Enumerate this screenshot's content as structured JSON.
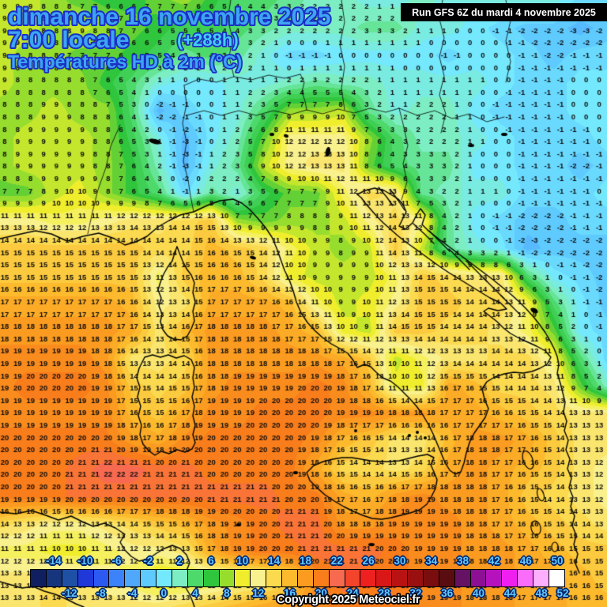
{
  "header": {
    "date_line": "dimanche 16 novembre 2025",
    "time_line": "7:00 locale",
    "forecast_offset": "(+288h)",
    "variable_line": "Températures HD à 2m (°C)",
    "text_fill": "#3da4f2",
    "text_outline": "#1b2fc4",
    "offset_fill": "#42ccf2"
  },
  "run_box": {
    "label": "Run GFS 6Z du mardi 4 novembre 2025",
    "bg": "#000000",
    "fg": "#ffffff"
  },
  "copyright": {
    "label": "Copyright 2025 Meteociel.fr",
    "fill": "#ffffff",
    "outline": "#000000"
  },
  "scale": {
    "unit": "°C",
    "min": -16,
    "max": 52,
    "step_per_cell": 2,
    "ticks_top": [
      -14,
      -10,
      -6,
      -2,
      2,
      6,
      10,
      14,
      18,
      22,
      26,
      30,
      34,
      38,
      42,
      46,
      50
    ],
    "ticks_bottom": [
      -12,
      -8,
      -4,
      0,
      4,
      8,
      12,
      16,
      20,
      24,
      28,
      32,
      36,
      40,
      44,
      48,
      52
    ],
    "label_color": "#61c8ff",
    "label_outline": "#04266e",
    "colors": [
      "#101f5f",
      "#16357c",
      "#1e50a6",
      "#2038d8",
      "#2c59f2",
      "#3c82fa",
      "#50a8fd",
      "#5ecafe",
      "#74e8fd",
      "#7deec3",
      "#4ed96b",
      "#2fc53c",
      "#97dd2e",
      "#f0ee2c",
      "#f9f18e",
      "#fbda50",
      "#fcba2c",
      "#fb9b20",
      "#f97d1b",
      "#f86a50",
      "#f4442b",
      "#ee2020",
      "#d91717",
      "#b91212",
      "#9a0f0f",
      "#7a0e0e",
      "#5a0d10",
      "#651164",
      "#8c0f94",
      "#b511bd",
      "#ef1fef",
      "#fb6cfb",
      "#fdaefc",
      "#ffffff"
    ]
  },
  "map": {
    "number_color": "#0d0d0d",
    "coast_color": "#000000"
  },
  "chart_data": {
    "type": "heatmap",
    "title": "Températures HD à 2m (°C)",
    "valid": "dimanche 16 novembre 2025 7:00 locale (+288h)",
    "run": "Run GFS 6Z du mardi 4 novembre 2025",
    "unit": "°C",
    "grid_cols": 24,
    "grid_rows": 23,
    "values": [
      [
        9,
        9,
        8,
        7,
        6,
        6,
        7,
        8,
        6,
        4,
        4,
        3,
        2,
        2,
        1,
        1,
        2,
        1,
        1,
        1,
        1,
        1,
        -1,
        -1
      ],
      [
        9,
        9,
        8,
        9,
        8,
        7,
        6,
        5,
        5,
        4,
        3,
        2,
        2,
        2,
        3,
        3,
        1,
        1,
        0,
        -1,
        -2,
        -2,
        -3,
        -2
      ],
      [
        9,
        8,
        8,
        7,
        7,
        6,
        5,
        3,
        4,
        3,
        1,
        -1,
        -1,
        0,
        0,
        0,
        0,
        -1,
        0,
        0,
        -1,
        -2,
        -1,
        -1
      ],
      [
        9,
        8,
        8,
        8,
        6,
        4,
        1,
        0,
        0,
        1,
        1,
        2,
        3,
        2,
        2,
        1,
        1,
        1,
        1,
        0,
        -1,
        -1,
        0,
        0
      ],
      [
        8,
        8,
        9,
        8,
        8,
        4,
        -3,
        -1,
        0,
        1,
        4,
        8,
        8,
        9,
        3,
        1,
        2,
        2,
        0,
        -1,
        -1,
        -1,
        0,
        0
      ],
      [
        8,
        9,
        9,
        9,
        8,
        5,
        1,
        -3,
        0,
        2,
        7,
        12,
        12,
        12,
        8,
        4,
        2,
        2,
        1,
        0,
        -1,
        -1,
        -1,
        0
      ],
      [
        8,
        9,
        9,
        9,
        8,
        6,
        2,
        -3,
        1,
        3,
        9,
        12,
        13,
        13,
        7,
        4,
        3,
        3,
        0,
        0,
        -1,
        -1,
        -2,
        -1
      ],
      [
        7,
        7,
        9,
        10,
        8,
        6,
        4,
        -1,
        3,
        1,
        5,
        7,
        7,
        11,
        14,
        13,
        3,
        2,
        1,
        1,
        -1,
        -1,
        -1,
        0
      ],
      [
        12,
        12,
        11,
        11,
        12,
        13,
        13,
        14,
        15,
        8,
        7,
        8,
        8,
        9,
        12,
        14,
        12,
        3,
        0,
        -1,
        -2,
        -2,
        -1,
        -1
      ],
      [
        15,
        15,
        15,
        15,
        15,
        15,
        14,
        14,
        16,
        15,
        14,
        11,
        9,
        8,
        9,
        15,
        9,
        3,
        1,
        0,
        -3,
        -2,
        -2,
        -2
      ],
      [
        15,
        15,
        15,
        15,
        15,
        15,
        11,
        15,
        16,
        16,
        14,
        10,
        9,
        9,
        9,
        11,
        15,
        14,
        13,
        13,
        4,
        0,
        -1,
        -2
      ],
      [
        17,
        17,
        17,
        17,
        17,
        16,
        12,
        13,
        17,
        17,
        17,
        16,
        11,
        9,
        10,
        12,
        15,
        15,
        14,
        14,
        11,
        4,
        0,
        -2
      ],
      [
        18,
        18,
        18,
        18,
        18,
        17,
        13,
        16,
        18,
        18,
        18,
        17,
        16,
        10,
        9,
        15,
        15,
        14,
        14,
        13,
        11,
        7,
        0,
        -1
      ],
      [
        19,
        19,
        19,
        19,
        18,
        13,
        13,
        14,
        18,
        18,
        18,
        18,
        18,
        17,
        15,
        9,
        11,
        13,
        13,
        14,
        14,
        11,
        4,
        -1
      ],
      [
        19,
        20,
        20,
        20,
        19,
        15,
        14,
        15,
        18,
        19,
        19,
        19,
        20,
        19,
        16,
        10,
        10,
        17,
        16,
        14,
        14,
        13,
        7,
        2
      ],
      [
        19,
        19,
        19,
        19,
        19,
        16,
        15,
        17,
        19,
        19,
        20,
        20,
        20,
        19,
        19,
        18,
        18,
        17,
        17,
        16,
        15,
        14,
        13,
        13
      ],
      [
        20,
        20,
        20,
        20,
        20,
        18,
        17,
        19,
        20,
        20,
        20,
        20,
        19,
        16,
        15,
        13,
        13,
        16,
        18,
        18,
        17,
        15,
        13,
        13
      ],
      [
        20,
        20,
        20,
        21,
        22,
        22,
        21,
        21,
        20,
        20,
        20,
        20,
        17,
        14,
        14,
        13,
        14,
        17,
        18,
        17,
        16,
        15,
        13,
        12
      ],
      [
        20,
        20,
        20,
        21,
        21,
        21,
        21,
        21,
        21,
        21,
        21,
        20,
        20,
        17,
        16,
        18,
        19,
        18,
        18,
        17,
        15,
        14,
        13,
        12
      ],
      [
        14,
        13,
        12,
        12,
        13,
        14,
        15,
        16,
        18,
        19,
        20,
        21,
        21,
        18,
        18,
        19,
        19,
        19,
        18,
        17,
        16,
        15,
        14,
        13
      ],
      [
        11,
        11,
        10,
        10,
        11,
        12,
        12,
        13,
        17,
        19,
        20,
        20,
        21,
        21,
        21,
        20,
        19,
        19,
        18,
        18,
        17,
        16,
        15,
        15
      ],
      [
        13,
        13,
        14,
        13,
        12,
        11,
        9,
        9,
        10,
        11,
        12,
        14,
        19,
        21,
        20,
        20,
        19,
        19,
        18,
        18,
        17,
        17,
        16,
        15
      ],
      [
        13,
        13,
        14,
        13,
        13,
        13,
        13,
        14,
        15,
        16,
        17,
        18,
        19,
        20,
        20,
        20,
        19,
        19,
        18,
        18,
        17,
        17,
        16,
        16
      ]
    ]
  }
}
